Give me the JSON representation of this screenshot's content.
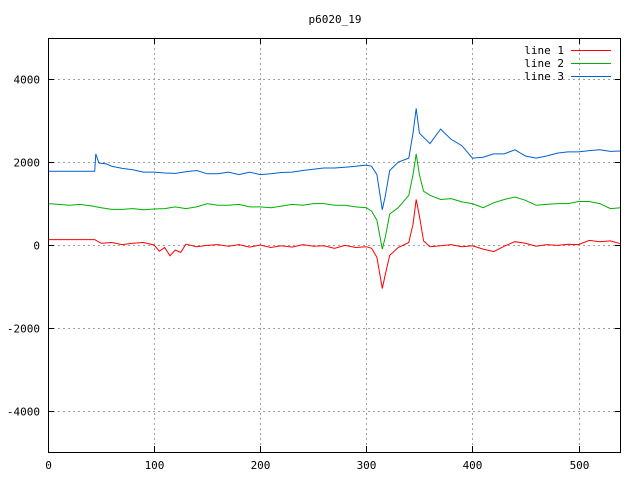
{
  "chart_data": {
    "type": "line",
    "title": "p6020_19",
    "xlabel": "",
    "ylabel": "",
    "xlim": [
      0,
      540
    ],
    "ylim": [
      -5000,
      5000
    ],
    "xticks": [
      0,
      100,
      200,
      300,
      400,
      500
    ],
    "yticks": [
      -4000,
      -2000,
      0,
      2000,
      4000
    ],
    "grid": true,
    "legend_position": "top-right",
    "series": [
      {
        "name": "line 1",
        "color": "#ff0000",
        "points": [
          [
            0,
            130
          ],
          [
            44,
            130
          ],
          [
            50,
            40
          ],
          [
            60,
            60
          ],
          [
            70,
            10
          ],
          [
            80,
            40
          ],
          [
            90,
            60
          ],
          [
            100,
            0
          ],
          [
            105,
            -150
          ],
          [
            110,
            -60
          ],
          [
            115,
            -260
          ],
          [
            120,
            -120
          ],
          [
            125,
            -180
          ],
          [
            130,
            20
          ],
          [
            140,
            -40
          ],
          [
            150,
            -10
          ],
          [
            160,
            10
          ],
          [
            170,
            -30
          ],
          [
            180,
            10
          ],
          [
            190,
            -50
          ],
          [
            200,
            0
          ],
          [
            210,
            -60
          ],
          [
            220,
            -20
          ],
          [
            230,
            -50
          ],
          [
            240,
            10
          ],
          [
            250,
            -30
          ],
          [
            260,
            -20
          ],
          [
            270,
            -80
          ],
          [
            280,
            -10
          ],
          [
            290,
            -60
          ],
          [
            300,
            -40
          ],
          [
            305,
            -80
          ],
          [
            310,
            -300
          ],
          [
            315,
            -1050
          ],
          [
            318,
            -700
          ],
          [
            322,
            -250
          ],
          [
            330,
            -60
          ],
          [
            340,
            60
          ],
          [
            344,
            500
          ],
          [
            347,
            1100
          ],
          [
            350,
            700
          ],
          [
            354,
            100
          ],
          [
            360,
            -40
          ],
          [
            370,
            -20
          ],
          [
            380,
            10
          ],
          [
            390,
            -40
          ],
          [
            400,
            -20
          ],
          [
            410,
            -100
          ],
          [
            420,
            -160
          ],
          [
            430,
            -30
          ],
          [
            440,
            80
          ],
          [
            450,
            40
          ],
          [
            460,
            -30
          ],
          [
            470,
            10
          ],
          [
            480,
            -10
          ],
          [
            490,
            20
          ],
          [
            500,
            10
          ],
          [
            510,
            110
          ],
          [
            520,
            80
          ],
          [
            530,
            100
          ],
          [
            540,
            30
          ]
        ]
      },
      {
        "name": "line 2",
        "color": "#00b000",
        "points": [
          [
            0,
            1000
          ],
          [
            10,
            980
          ],
          [
            20,
            960
          ],
          [
            30,
            980
          ],
          [
            40,
            950
          ],
          [
            50,
            900
          ],
          [
            60,
            860
          ],
          [
            70,
            860
          ],
          [
            80,
            880
          ],
          [
            90,
            850
          ],
          [
            100,
            870
          ],
          [
            110,
            880
          ],
          [
            120,
            920
          ],
          [
            130,
            880
          ],
          [
            140,
            920
          ],
          [
            150,
            1000
          ],
          [
            160,
            960
          ],
          [
            170,
            960
          ],
          [
            180,
            980
          ],
          [
            190,
            920
          ],
          [
            200,
            920
          ],
          [
            210,
            900
          ],
          [
            220,
            940
          ],
          [
            230,
            980
          ],
          [
            240,
            960
          ],
          [
            250,
            1000
          ],
          [
            260,
            1000
          ],
          [
            270,
            960
          ],
          [
            280,
            960
          ],
          [
            290,
            920
          ],
          [
            300,
            900
          ],
          [
            305,
            820
          ],
          [
            310,
            600
          ],
          [
            315,
            -100
          ],
          [
            318,
            200
          ],
          [
            322,
            750
          ],
          [
            330,
            900
          ],
          [
            340,
            1200
          ],
          [
            344,
            1700
          ],
          [
            347,
            2200
          ],
          [
            350,
            1700
          ],
          [
            354,
            1300
          ],
          [
            360,
            1200
          ],
          [
            370,
            1100
          ],
          [
            380,
            1120
          ],
          [
            390,
            1040
          ],
          [
            400,
            1000
          ],
          [
            410,
            900
          ],
          [
            420,
            1020
          ],
          [
            430,
            1100
          ],
          [
            440,
            1160
          ],
          [
            450,
            1080
          ],
          [
            460,
            960
          ],
          [
            470,
            980
          ],
          [
            480,
            1000
          ],
          [
            490,
            1000
          ],
          [
            500,
            1050
          ],
          [
            510,
            1050
          ],
          [
            520,
            1000
          ],
          [
            530,
            880
          ],
          [
            540,
            900
          ]
        ]
      },
      {
        "name": "line 3",
        "color": "#0060d0",
        "points": [
          [
            0,
            1780
          ],
          [
            44,
            1780
          ],
          [
            45,
            2200
          ],
          [
            48,
            1980
          ],
          [
            55,
            1960
          ],
          [
            60,
            1900
          ],
          [
            70,
            1850
          ],
          [
            80,
            1820
          ],
          [
            90,
            1760
          ],
          [
            100,
            1760
          ],
          [
            110,
            1740
          ],
          [
            120,
            1730
          ],
          [
            130,
            1770
          ],
          [
            140,
            1800
          ],
          [
            150,
            1720
          ],
          [
            160,
            1720
          ],
          [
            170,
            1760
          ],
          [
            180,
            1700
          ],
          [
            190,
            1760
          ],
          [
            200,
            1700
          ],
          [
            210,
            1720
          ],
          [
            220,
            1750
          ],
          [
            230,
            1760
          ],
          [
            240,
            1800
          ],
          [
            250,
            1830
          ],
          [
            260,
            1860
          ],
          [
            270,
            1860
          ],
          [
            280,
            1880
          ],
          [
            290,
            1900
          ],
          [
            300,
            1930
          ],
          [
            305,
            1900
          ],
          [
            310,
            1700
          ],
          [
            315,
            850
          ],
          [
            318,
            1200
          ],
          [
            322,
            1800
          ],
          [
            330,
            2000
          ],
          [
            340,
            2100
          ],
          [
            344,
            2700
          ],
          [
            347,
            3300
          ],
          [
            350,
            2700
          ],
          [
            360,
            2450
          ],
          [
            370,
            2800
          ],
          [
            380,
            2550
          ],
          [
            390,
            2400
          ],
          [
            400,
            2100
          ],
          [
            410,
            2120
          ],
          [
            420,
            2200
          ],
          [
            430,
            2200
          ],
          [
            440,
            2300
          ],
          [
            450,
            2150
          ],
          [
            460,
            2100
          ],
          [
            470,
            2150
          ],
          [
            480,
            2220
          ],
          [
            490,
            2250
          ],
          [
            500,
            2250
          ],
          [
            510,
            2280
          ],
          [
            520,
            2300
          ],
          [
            530,
            2260
          ],
          [
            540,
            2270
          ]
        ]
      }
    ]
  }
}
